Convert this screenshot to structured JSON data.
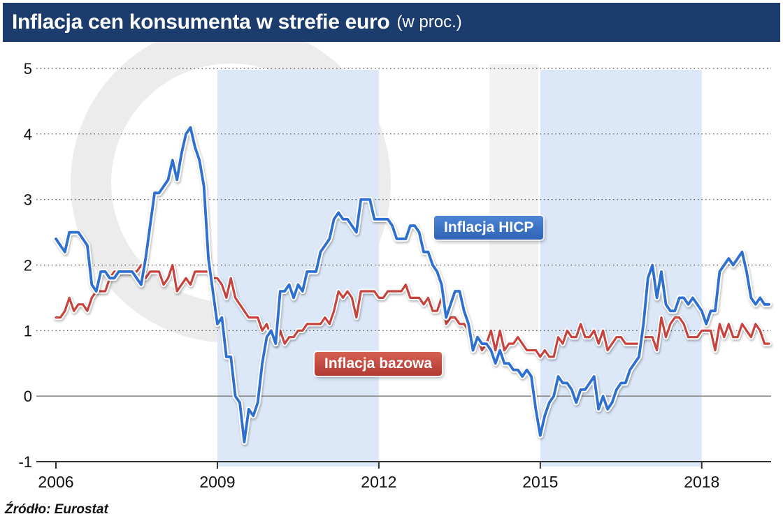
{
  "header": {
    "title": "Inflacja cen konsumenta w strefie euro",
    "title_suffix": "(w proc.)"
  },
  "footer": {
    "source": "Źródło: Eurostat"
  },
  "colors": {
    "header_bg": "#1b3c6c",
    "band_fill": "#dce8f8",
    "watermark": "#ececec",
    "grid": "#444444",
    "zero_line": "#808080",
    "axis": "#333333",
    "hicp_line": "#2e6fd0",
    "core_line": "#c7433c",
    "line_halo": "#ffffff"
  },
  "chart_data": {
    "type": "line",
    "title": "Inflacja cen konsumenta w strefie euro (w proc.)",
    "x_unit": "month",
    "x_start": "2006-01",
    "x_end": "2019-04",
    "x_tick_years": [
      2006,
      2009,
      2012,
      2015,
      2018
    ],
    "ylim": [
      -1,
      5
    ],
    "yticks": [
      5,
      4,
      3,
      2,
      1,
      0,
      -1
    ],
    "grid": "dotted-horizontal",
    "legend_position": "inline-boxes",
    "shaded_year_bands": [
      [
        2009,
        2012
      ],
      [
        2015,
        2018
      ]
    ],
    "series": [
      {
        "name": "Inflacja HICP",
        "color": "#2e6fd0",
        "values": [
          2.4,
          2.3,
          2.2,
          2.5,
          2.5,
          2.5,
          2.4,
          2.3,
          1.7,
          1.6,
          1.9,
          1.9,
          1.8,
          1.8,
          1.9,
          1.9,
          1.9,
          1.9,
          1.8,
          1.7,
          2.1,
          2.6,
          3.1,
          3.1,
          3.2,
          3.3,
          3.6,
          3.3,
          3.7,
          4.0,
          4.1,
          3.8,
          3.6,
          3.2,
          2.1,
          1.6,
          1.1,
          1.2,
          0.6,
          0.6,
          0.0,
          -0.1,
          -0.7,
          -0.2,
          -0.3,
          -0.1,
          0.5,
          0.9,
          1.0,
          0.8,
          1.6,
          1.6,
          1.7,
          1.5,
          1.7,
          1.6,
          1.9,
          1.9,
          1.9,
          2.2,
          2.3,
          2.4,
          2.7,
          2.8,
          2.7,
          2.7,
          2.6,
          2.5,
          3.0,
          3.0,
          3.0,
          2.7,
          2.7,
          2.7,
          2.7,
          2.6,
          2.4,
          2.4,
          2.4,
          2.6,
          2.6,
          2.5,
          2.2,
          2.2,
          2.0,
          1.9,
          1.7,
          1.2,
          1.4,
          1.6,
          1.6,
          1.3,
          1.1,
          0.7,
          0.9,
          0.8,
          0.8,
          0.7,
          0.5,
          0.7,
          0.5,
          0.5,
          0.4,
          0.4,
          0.3,
          0.4,
          0.3,
          -0.2,
          -0.6,
          -0.3,
          -0.1,
          0.0,
          0.3,
          0.2,
          0.2,
          0.1,
          -0.1,
          0.1,
          0.1,
          0.2,
          0.3,
          -0.2,
          0.0,
          -0.2,
          -0.1,
          0.1,
          0.2,
          0.2,
          0.4,
          0.5,
          0.6,
          1.1,
          1.8,
          2.0,
          1.5,
          1.9,
          1.4,
          1.3,
          1.3,
          1.5,
          1.5,
          1.4,
          1.5,
          1.4,
          1.3,
          1.1,
          1.3,
          1.3,
          1.9,
          2.0,
          2.1,
          2.0,
          2.1,
          2.2,
          1.9,
          1.5,
          1.4,
          1.5,
          1.4,
          1.4
        ]
      },
      {
        "name": "Inflacja bazowa",
        "color": "#c7433c",
        "values": [
          1.2,
          1.2,
          1.3,
          1.5,
          1.3,
          1.4,
          1.4,
          1.3,
          1.5,
          1.6,
          1.6,
          1.6,
          1.8,
          1.9,
          1.9,
          1.9,
          1.9,
          1.9,
          1.9,
          2.0,
          1.8,
          1.9,
          1.9,
          1.9,
          1.7,
          1.8,
          2.0,
          1.6,
          1.7,
          1.8,
          1.7,
          1.9,
          1.9,
          1.9,
          1.9,
          1.8,
          1.8,
          1.7,
          1.5,
          1.8,
          1.5,
          1.4,
          1.3,
          1.2,
          1.2,
          1.2,
          1.0,
          1.1,
          0.9,
          0.8,
          1.0,
          0.8,
          0.9,
          0.9,
          1.0,
          1.0,
          1.1,
          1.1,
          1.1,
          1.1,
          1.2,
          1.1,
          1.3,
          1.6,
          1.5,
          1.6,
          1.5,
          1.2,
          1.6,
          1.6,
          1.6,
          1.6,
          1.5,
          1.5,
          1.6,
          1.6,
          1.6,
          1.6,
          1.7,
          1.5,
          1.5,
          1.5,
          1.4,
          1.5,
          1.3,
          1.3,
          1.5,
          1.1,
          1.2,
          1.2,
          1.1,
          1.1,
          1.0,
          0.8,
          0.9,
          0.7,
          0.8,
          1.0,
          0.7,
          1.0,
          0.7,
          0.8,
          0.8,
          0.9,
          0.8,
          0.7,
          0.7,
          0.7,
          0.6,
          0.7,
          0.6,
          0.6,
          0.9,
          0.8,
          1.0,
          0.9,
          0.9,
          1.1,
          0.9,
          0.9,
          1.0,
          0.8,
          1.0,
          0.7,
          0.8,
          0.9,
          0.9,
          0.8,
          0.8,
          0.8,
          0.8,
          0.9,
          0.9,
          0.9,
          0.7,
          1.2,
          0.9,
          1.1,
          1.2,
          1.2,
          1.1,
          0.9,
          0.9,
          0.9,
          1.0,
          1.0,
          1.0,
          0.7,
          1.1,
          0.9,
          1.1,
          0.9,
          0.9,
          1.1,
          1.0,
          0.9,
          1.1,
          1.0,
          0.8,
          0.8
        ]
      }
    ]
  }
}
